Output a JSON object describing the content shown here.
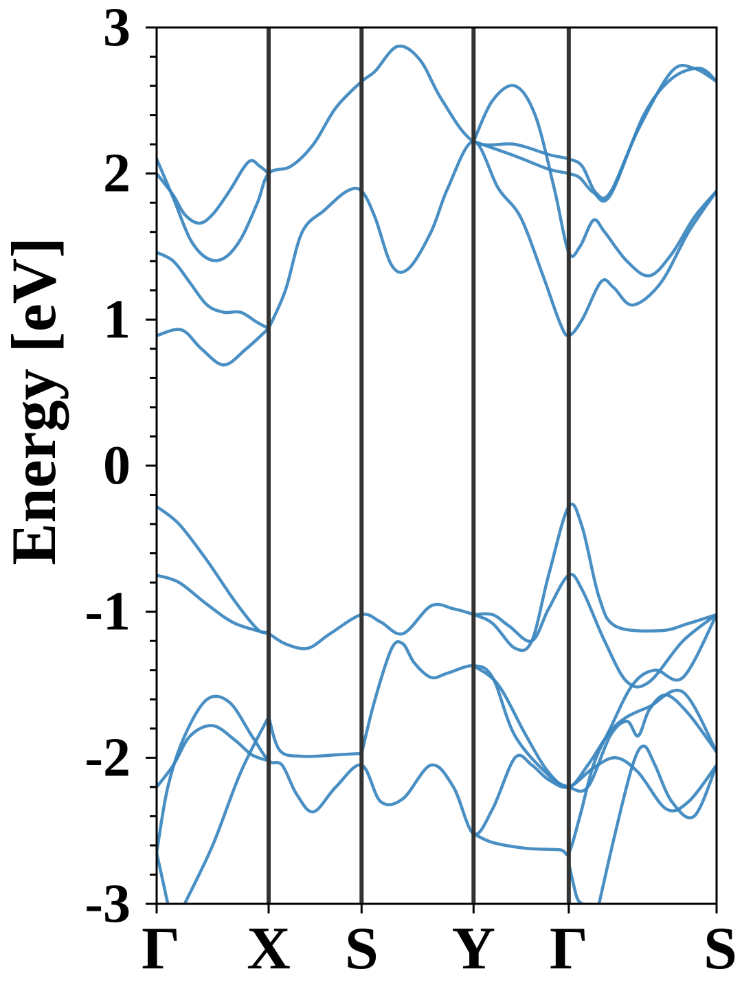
{
  "chart_data": {
    "type": "line",
    "title": "",
    "xlabel": "",
    "ylabel": "Energy [eV]",
    "ylim": [
      -3,
      3
    ],
    "xlim": [
      0,
      5.0
    ],
    "grid": false,
    "line_color": "#3a85be",
    "divider_color": "#333333",
    "y_ticks": [
      3,
      2,
      1,
      0,
      -1,
      -2,
      -3
    ],
    "y_tick_labels": [
      "3",
      "2",
      "1",
      "0",
      "-1",
      "-2",
      "-3"
    ],
    "y_minor_step": 0.2,
    "k_points": [
      {
        "label": "Γ",
        "x": 0.0
      },
      {
        "label": "X",
        "x": 1.0
      },
      {
        "label": "S",
        "x": 1.83
      },
      {
        "label": "Y",
        "x": 2.83
      },
      {
        "label": "Γ",
        "x": 3.68
      },
      {
        "label": "S",
        "x": 5.0
      }
    ],
    "series": [
      {
        "values": [
          [
            0,
            2.1
          ],
          [
            0.15,
            1.83
          ],
          [
            0.3,
            1.55
          ],
          [
            0.45,
            1.42
          ],
          [
            0.6,
            1.42
          ],
          [
            0.75,
            1.55
          ],
          [
            0.9,
            1.8
          ],
          [
            1.0,
            2.0
          ],
          [
            1.2,
            2.05
          ],
          [
            1.4,
            2.2
          ],
          [
            1.6,
            2.45
          ],
          [
            1.83,
            2.63
          ],
          [
            1.95,
            2.7
          ],
          [
            2.15,
            2.87
          ],
          [
            2.35,
            2.78
          ],
          [
            2.55,
            2.5
          ],
          [
            2.83,
            2.22
          ],
          [
            3.2,
            2.2
          ],
          [
            3.5,
            2.13
          ],
          [
            3.68,
            2.1
          ],
          [
            3.8,
            2.05
          ],
          [
            3.92,
            1.87
          ],
          [
            4.05,
            1.87
          ],
          [
            4.3,
            2.3
          ],
          [
            4.6,
            2.7
          ],
          [
            4.8,
            2.72
          ],
          [
            5.0,
            2.63
          ]
        ]
      },
      {
        "values": [
          [
            0,
            2.0
          ],
          [
            0.15,
            1.85
          ],
          [
            0.25,
            1.72
          ],
          [
            0.38,
            1.66
          ],
          [
            0.5,
            1.72
          ],
          [
            0.65,
            1.88
          ],
          [
            0.82,
            2.08
          ],
          [
            0.92,
            2.05
          ],
          [
            1.0,
            2.0
          ]
        ]
      },
      {
        "values": [
          [
            1.0,
            0.94
          ],
          [
            1.15,
            1.2
          ],
          [
            1.3,
            1.6
          ],
          [
            1.5,
            1.75
          ],
          [
            1.7,
            1.88
          ],
          [
            1.83,
            1.88
          ],
          [
            1.95,
            1.7
          ],
          [
            2.1,
            1.37
          ],
          [
            2.25,
            1.35
          ],
          [
            2.45,
            1.6
          ],
          [
            2.6,
            1.9
          ],
          [
            2.83,
            2.22
          ],
          [
            3.05,
            1.9
          ],
          [
            3.25,
            1.7
          ],
          [
            3.45,
            1.3
          ],
          [
            3.6,
            0.98
          ],
          [
            3.68,
            0.89
          ],
          [
            3.8,
            1.0
          ],
          [
            3.97,
            1.26
          ],
          [
            4.08,
            1.22
          ],
          [
            4.25,
            1.1
          ],
          [
            4.5,
            1.25
          ],
          [
            4.75,
            1.6
          ],
          [
            5.0,
            1.88
          ]
        ]
      },
      {
        "values": [
          [
            0,
            1.46
          ],
          [
            0.15,
            1.4
          ],
          [
            0.3,
            1.25
          ],
          [
            0.45,
            1.1
          ],
          [
            0.6,
            1.05
          ],
          [
            0.75,
            1.05
          ],
          [
            0.9,
            0.98
          ],
          [
            1.0,
            0.94
          ]
        ]
      },
      {
        "values": [
          [
            0,
            0.89
          ],
          [
            0.22,
            0.93
          ],
          [
            0.4,
            0.8
          ],
          [
            0.6,
            0.69
          ],
          [
            0.8,
            0.8
          ],
          [
            1.0,
            0.94
          ]
        ]
      },
      {
        "values": [
          [
            2.83,
            2.22
          ],
          [
            3.0,
            2.5
          ],
          [
            3.2,
            2.6
          ],
          [
            3.38,
            2.4
          ],
          [
            3.55,
            1.9
          ],
          [
            3.68,
            1.46
          ],
          [
            3.78,
            1.5
          ],
          [
            3.9,
            1.68
          ],
          [
            4.0,
            1.6
          ],
          [
            4.2,
            1.4
          ],
          [
            4.4,
            1.3
          ],
          [
            4.6,
            1.45
          ],
          [
            4.8,
            1.7
          ],
          [
            5.0,
            1.88
          ]
        ]
      },
      {
        "values": [
          [
            2.83,
            2.22
          ],
          [
            3.2,
            2.12
          ],
          [
            3.5,
            2.03
          ],
          [
            3.68,
            2.0
          ],
          [
            3.78,
            1.97
          ],
          [
            3.9,
            1.87
          ],
          [
            4.05,
            1.85
          ],
          [
            4.35,
            2.4
          ],
          [
            4.6,
            2.65
          ],
          [
            4.85,
            2.72
          ],
          [
            5.0,
            2.63
          ]
        ]
      },
      {
        "values": [
          [
            0,
            -0.28
          ],
          [
            0.2,
            -0.4
          ],
          [
            0.45,
            -0.65
          ],
          [
            0.7,
            -0.93
          ],
          [
            0.9,
            -1.12
          ],
          [
            1.0,
            -1.15
          ],
          [
            1.15,
            -1.22
          ],
          [
            1.35,
            -1.25
          ],
          [
            1.55,
            -1.15
          ],
          [
            1.83,
            -1.02
          ],
          [
            2.0,
            -1.07
          ],
          [
            2.2,
            -1.15
          ],
          [
            2.45,
            -0.96
          ],
          [
            2.65,
            -0.98
          ],
          [
            2.83,
            -1.02
          ],
          [
            3.0,
            -1.08
          ],
          [
            3.2,
            -1.25
          ],
          [
            3.35,
            -1.2
          ],
          [
            3.5,
            -0.75
          ],
          [
            3.68,
            -0.28
          ],
          [
            3.8,
            -0.42
          ],
          [
            3.95,
            -0.9
          ],
          [
            4.1,
            -1.1
          ],
          [
            4.5,
            -1.13
          ],
          [
            4.75,
            -1.08
          ],
          [
            5.0,
            -1.02
          ]
        ]
      },
      {
        "values": [
          [
            0,
            -0.75
          ],
          [
            0.2,
            -0.8
          ],
          [
            0.45,
            -0.95
          ],
          [
            0.7,
            -1.08
          ],
          [
            1.0,
            -1.15
          ]
        ]
      },
      {
        "values": [
          [
            2.83,
            -1.02
          ],
          [
            3.0,
            -1.02
          ],
          [
            3.15,
            -1.1
          ],
          [
            3.35,
            -1.2
          ],
          [
            3.5,
            -0.98
          ],
          [
            3.68,
            -0.75
          ],
          [
            3.8,
            -0.85
          ],
          [
            4.0,
            -1.2
          ],
          [
            4.2,
            -1.48
          ],
          [
            4.4,
            -1.48
          ],
          [
            4.7,
            -1.2
          ],
          [
            5.0,
            -1.02
          ]
        ]
      },
      {
        "values": [
          [
            1.83,
            -1.97
          ],
          [
            1.95,
            -1.6
          ],
          [
            2.1,
            -1.25
          ],
          [
            2.2,
            -1.22
          ],
          [
            2.3,
            -1.35
          ],
          [
            2.45,
            -1.45
          ],
          [
            2.6,
            -1.42
          ],
          [
            2.83,
            -1.37
          ],
          [
            3.0,
            -1.45
          ],
          [
            3.2,
            -1.85
          ],
          [
            3.5,
            -2.12
          ],
          [
            3.68,
            -2.2
          ],
          [
            3.85,
            -2.2
          ],
          [
            4.05,
            -1.85
          ],
          [
            4.2,
            -1.75
          ],
          [
            4.3,
            -1.85
          ],
          [
            4.4,
            -1.67
          ],
          [
            4.55,
            -1.57
          ],
          [
            4.75,
            -1.7
          ],
          [
            5.0,
            -1.96
          ]
        ]
      },
      {
        "values": [
          [
            1.0,
            -1.72
          ],
          [
            1.1,
            -1.95
          ],
          [
            1.3,
            -1.99
          ],
          [
            1.6,
            -1.98
          ],
          [
            1.83,
            -1.97
          ]
        ]
      },
      {
        "values": [
          [
            0,
            -2.65
          ],
          [
            0.1,
            -2.2
          ],
          [
            0.25,
            -1.85
          ],
          [
            0.45,
            -1.6
          ],
          [
            0.65,
            -1.62
          ],
          [
            0.85,
            -1.85
          ],
          [
            1.0,
            -2.02
          ],
          [
            1.12,
            -2.05
          ],
          [
            1.25,
            -2.25
          ],
          [
            1.4,
            -2.37
          ],
          [
            1.6,
            -2.2
          ],
          [
            1.83,
            -2.05
          ],
          [
            2.0,
            -2.3
          ],
          [
            2.2,
            -2.28
          ],
          [
            2.45,
            -2.05
          ],
          [
            2.65,
            -2.2
          ],
          [
            2.83,
            -2.52
          ],
          [
            3.0,
            -2.35
          ],
          [
            3.2,
            -2.0
          ],
          [
            3.35,
            -2.05
          ],
          [
            3.5,
            -2.15
          ],
          [
            3.68,
            -2.2
          ],
          [
            3.9,
            -2.07
          ],
          [
            4.1,
            -2.0
          ],
          [
            4.3,
            -2.1
          ],
          [
            4.55,
            -2.35
          ],
          [
            4.75,
            -2.3
          ],
          [
            5.0,
            -2.05
          ]
        ]
      },
      {
        "values": [
          [
            0,
            -2.2
          ],
          [
            0.15,
            -2.05
          ],
          [
            0.3,
            -1.85
          ],
          [
            0.5,
            -1.78
          ],
          [
            0.7,
            -1.88
          ],
          [
            0.85,
            -1.98
          ],
          [
            1.0,
            -2.02
          ]
        ]
      },
      {
        "values": [
          [
            0,
            -2.65
          ],
          [
            0.1,
            -3.0
          ]
        ]
      },
      {
        "values": [
          [
            0.25,
            -3.0
          ],
          [
            0.5,
            -2.6
          ],
          [
            0.75,
            -2.1
          ],
          [
            1.0,
            -1.72
          ]
        ]
      },
      {
        "values": [
          [
            2.83,
            -1.37
          ],
          [
            3.05,
            -1.5
          ],
          [
            3.3,
            -1.85
          ],
          [
            3.5,
            -2.1
          ],
          [
            3.68,
            -2.2
          ],
          [
            3.85,
            -2.05
          ],
          [
            4.05,
            -1.82
          ],
          [
            4.2,
            -1.72
          ],
          [
            4.4,
            -1.65
          ],
          [
            4.7,
            -1.55
          ],
          [
            5.0,
            -1.96
          ]
        ]
      },
      {
        "values": [
          [
            2.83,
            -2.52
          ],
          [
            3.0,
            -2.58
          ],
          [
            3.3,
            -2.62
          ],
          [
            3.6,
            -2.63
          ],
          [
            3.68,
            -2.65
          ],
          [
            3.78,
            -2.4
          ],
          [
            3.9,
            -2.05
          ],
          [
            4.05,
            -1.8
          ],
          [
            4.25,
            -1.5
          ],
          [
            4.45,
            -1.4
          ],
          [
            4.7,
            -1.45
          ],
          [
            5.0,
            -1.02
          ]
        ]
      },
      {
        "values": [
          [
            3.68,
            -2.72
          ],
          [
            3.75,
            -2.95
          ],
          [
            3.8,
            -3.0
          ]
        ]
      },
      {
        "values": [
          [
            3.95,
            -3.0
          ],
          [
            4.1,
            -2.5
          ],
          [
            4.25,
            -2.05
          ],
          [
            4.35,
            -1.92
          ],
          [
            4.45,
            -2.05
          ],
          [
            4.6,
            -2.3
          ],
          [
            4.8,
            -2.4
          ],
          [
            5.0,
            -2.05
          ]
        ]
      }
    ]
  }
}
